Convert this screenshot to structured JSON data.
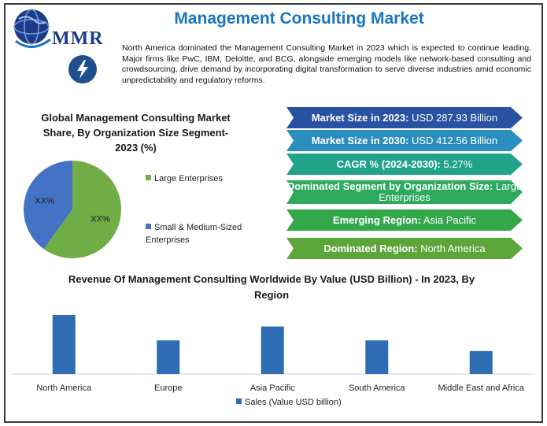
{
  "header": {
    "logo_text": "MMR",
    "title": "Management Consulting Market",
    "intro": "North America dominated the Management Consulting Market in 2023 which is expected to continue leading. Major firms like PwC, IBM, Deloitte, and BCG, alongside emerging models like network-based consulting and crowdsourcing, drive demand by incorporating digital transformation to serve diverse industries amid economic unpredictability and regulatory reforms."
  },
  "icons": {
    "logo": "globe-logo-icon",
    "bolt": "lightning-bolt-icon"
  },
  "stats": [
    {
      "label": "Market Size in 2023:",
      "value": " USD 287.93 Billion",
      "color": "#2a52a3"
    },
    {
      "label": "Market Size in 2030:",
      "value": " USD 412.56 Billion",
      "color": "#2a8fbf"
    },
    {
      "label": "CAGR % (2024-2030):",
      "value": " 5.27%",
      "color": "#21a38a"
    },
    {
      "label": "Dominated Segment by Organization Size:",
      "value": " Large Enterprises",
      "color": "#2eaa5f"
    },
    {
      "label": "Emerging Region:",
      "value": " Asia Pacific",
      "color": "#33a84a"
    },
    {
      "label": "Dominated Region:",
      "value": " North America",
      "color": "#5ba539"
    }
  ],
  "chart_data": [
    {
      "type": "pie",
      "title": "Global Management Consulting Market Share, By Organization Size Segment- 2023 (%)",
      "series": [
        {
          "name": "Large Enterprises",
          "value": 60,
          "label": "XX%",
          "color": "#70ad47"
        },
        {
          "name": "Small & Medium-Sized Enterprises",
          "value": 40,
          "label": "XX%",
          "color": "#4472c4"
        }
      ],
      "legend": "right"
    },
    {
      "type": "bar",
      "title": "Revenue Of Management Consulting Worldwide By Value (USD Billion) - In 2023, By Region",
      "categories": [
        "North America",
        "Europe",
        "Asia Pacific",
        "South America",
        "Middle East and Africa"
      ],
      "series": [
        {
          "name": "Sales (Value USD billion)",
          "values": [
            72,
            41,
            58,
            41,
            28
          ],
          "color": "#2e6db4"
        }
      ],
      "legend": "bottom"
    }
  ]
}
